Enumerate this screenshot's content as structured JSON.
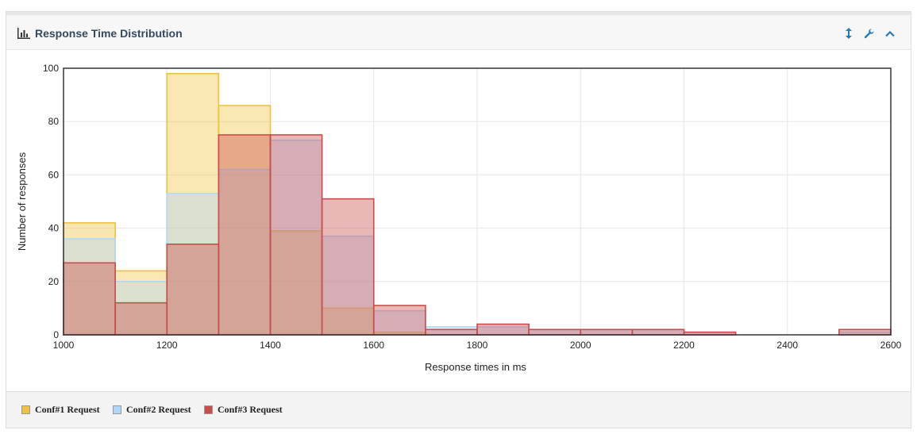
{
  "panel": {
    "title": "Response Time Distribution",
    "icons": [
      "bar-chart-icon",
      "resize-vertical-icon",
      "wrench-icon",
      "chevron-up-icon"
    ]
  },
  "chart_data": {
    "type": "bar",
    "xlabel": "Response times in ms",
    "ylabel": "Number of responses",
    "xlim": [
      1000,
      2600
    ],
    "ylim": [
      0,
      100
    ],
    "bin_width": 100,
    "x_ticks": [
      1000,
      1200,
      1400,
      1600,
      1800,
      2000,
      2200,
      2400,
      2600
    ],
    "y_ticks": [
      0,
      20,
      40,
      60,
      80,
      100
    ],
    "grid": true,
    "legend_position": "bottom-left",
    "bins": [
      1000,
      1100,
      1200,
      1300,
      1400,
      1500,
      1600,
      1700,
      1800,
      1900,
      2000,
      2100,
      2200,
      2300,
      2400,
      2500
    ],
    "series": [
      {
        "name": "Conf#1 Request",
        "stroke": "#edc240",
        "fill": "rgba(237,194,64,0.4)",
        "values": [
          42,
          24,
          98,
          86,
          39,
          10,
          1,
          0,
          0,
          0,
          0,
          0,
          0,
          0,
          0,
          0
        ]
      },
      {
        "name": "Conf#2 Request",
        "stroke": "#afd8f8",
        "fill": "rgba(175,216,248,0.4)",
        "values": [
          36,
          20,
          53,
          62,
          73,
          37,
          9,
          3,
          3,
          2,
          2,
          2,
          1,
          0,
          0,
          1
        ]
      },
      {
        "name": "Conf#3 Request",
        "stroke": "#cb4b4b",
        "fill": "rgba(203,75,75,0.4)",
        "values": [
          27,
          12,
          34,
          75,
          75,
          51,
          11,
          2,
          4,
          2,
          2,
          2,
          1,
          0,
          0,
          2
        ]
      }
    ]
  }
}
